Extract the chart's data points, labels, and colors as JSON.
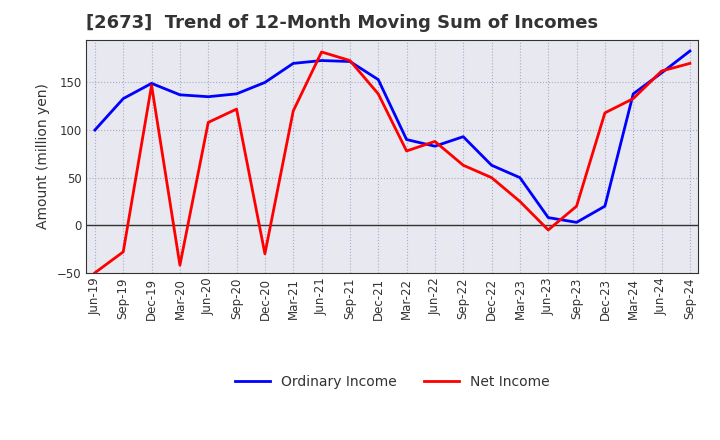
{
  "title": "[2673]  Trend of 12-Month Moving Sum of Incomes",
  "ylabel": "Amount (million yen)",
  "x_labels": [
    "Jun-19",
    "Sep-19",
    "Dec-19",
    "Mar-20",
    "Jun-20",
    "Sep-20",
    "Dec-20",
    "Mar-21",
    "Jun-21",
    "Sep-21",
    "Dec-21",
    "Mar-22",
    "Jun-22",
    "Sep-22",
    "Dec-22",
    "Mar-23",
    "Jun-23",
    "Sep-23",
    "Dec-23",
    "Mar-24",
    "Jun-24",
    "Sep-24"
  ],
  "ordinary_income": [
    100,
    133,
    149,
    137,
    135,
    138,
    150,
    170,
    173,
    172,
    153,
    90,
    83,
    93,
    63,
    50,
    8,
    3,
    20,
    138,
    160,
    183
  ],
  "net_income": [
    -50,
    -28,
    147,
    -42,
    108,
    122,
    -30,
    120,
    182,
    173,
    138,
    78,
    88,
    63,
    50,
    25,
    -5,
    20,
    118,
    133,
    162,
    170
  ],
  "ylim": [
    -50,
    195
  ],
  "yticks": [
    -50,
    0,
    50,
    100,
    150
  ],
  "ordinary_color": "#0000FF",
  "net_color": "#FF0000",
  "grid_color": "#AAAACC",
  "plot_bg_color": "#E8E8F0",
  "bg_color": "#FFFFFF",
  "legend_ordinary": "Ordinary Income",
  "legend_net": "Net Income",
  "title_fontsize": 13,
  "title_color": "#333333",
  "label_fontsize": 10,
  "tick_fontsize": 8.5,
  "linewidth": 2.0
}
